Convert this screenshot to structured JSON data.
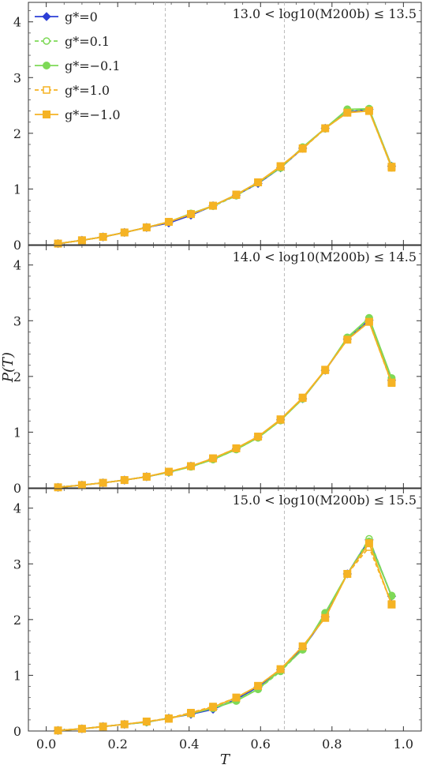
{
  "chart_data": {
    "type": "line",
    "xlabel": "T",
    "ylabel": "P(T)",
    "xlim": [
      -0.05,
      1.05
    ],
    "ylim": [
      0,
      4.35
    ],
    "x_ticks": [
      0.0,
      0.2,
      0.4,
      0.6,
      0.8,
      1.0
    ],
    "x_tick_labels": [
      "0.0",
      "0.2",
      "0.4",
      "0.6",
      "0.8",
      "1.0"
    ],
    "y_ticks": [
      0,
      1,
      2,
      3,
      4
    ],
    "y_tick_labels": [
      "0",
      "1",
      "2",
      "3",
      "4"
    ],
    "vertical_reference_lines": [
      0.3333,
      0.6667
    ],
    "grid": false,
    "legend_position": "top-left",
    "legend": [
      {
        "label": "g*=0",
        "color": "#2c3fd6",
        "style": "solid",
        "marker": "diamond"
      },
      {
        "label": "g*=0.1",
        "color": "#7ed957",
        "style": "dashed",
        "marker": "circle-open"
      },
      {
        "label": "g*=−0.1",
        "color": "#7ed957",
        "style": "solid",
        "marker": "circle"
      },
      {
        "label": "g*=1.0",
        "color": "#f5b324",
        "style": "dashed",
        "marker": "square-open"
      },
      {
        "label": "g*=−1.0",
        "color": "#f5b324",
        "style": "solid",
        "marker": "square"
      }
    ],
    "x": [
      0.033,
      0.1,
      0.159,
      0.219,
      0.281,
      0.343,
      0.405,
      0.467,
      0.532,
      0.593,
      0.656,
      0.718,
      0.781,
      0.843,
      0.904,
      0.967
    ],
    "panels": [
      {
        "label": "13.0 < log10(M200b) ≤ 13.5",
        "series": [
          {
            "name": "g*=0",
            "values": [
              0.02,
              0.08,
              0.14,
              0.22,
              0.31,
              0.39,
              0.53,
              0.7,
              0.89,
              1.1,
              1.38,
              1.73,
              2.09,
              2.38,
              2.43,
              1.41
            ]
          },
          {
            "name": "g*=0.1",
            "values": [
              0.02,
              0.08,
              0.14,
              0.22,
              0.31,
              0.41,
              0.55,
              0.69,
              0.88,
              1.11,
              1.38,
              1.73,
              2.08,
              2.41,
              2.43,
              1.38
            ]
          },
          {
            "name": "g*=−0.1",
            "values": [
              0.02,
              0.08,
              0.14,
              0.22,
              0.31,
              0.41,
              0.56,
              0.7,
              0.9,
              1.12,
              1.38,
              1.75,
              2.09,
              2.43,
              2.44,
              1.41
            ]
          },
          {
            "name": "g*=1.0",
            "values": [
              0.02,
              0.08,
              0.14,
              0.22,
              0.31,
              0.41,
              0.55,
              0.7,
              0.89,
              1.12,
              1.4,
              1.72,
              2.09,
              2.37,
              2.41,
              1.38
            ]
          },
          {
            "name": "g*=−1.0",
            "values": [
              0.02,
              0.08,
              0.14,
              0.22,
              0.31,
              0.41,
              0.55,
              0.7,
              0.9,
              1.12,
              1.41,
              1.73,
              2.09,
              2.37,
              2.4,
              1.4
            ]
          }
        ]
      },
      {
        "label": "14.0 < log10(M200b) ≤ 14.5",
        "series": [
          {
            "name": "g*=0",
            "values": [
              0.01,
              0.05,
              0.09,
              0.14,
              0.2,
              0.28,
              0.39,
              0.52,
              0.7,
              0.91,
              1.22,
              1.6,
              2.11,
              2.67,
              3.01,
              1.93
            ]
          },
          {
            "name": "g*=0.1",
            "values": [
              0.01,
              0.05,
              0.09,
              0.14,
              0.2,
              0.28,
              0.38,
              0.51,
              0.69,
              0.9,
              1.21,
              1.6,
              2.11,
              2.69,
              3.03,
              1.95
            ]
          },
          {
            "name": "g*=−0.1",
            "values": [
              0.01,
              0.05,
              0.09,
              0.14,
              0.2,
              0.28,
              0.38,
              0.51,
              0.69,
              0.9,
              1.21,
              1.6,
              2.11,
              2.7,
              3.05,
              1.97
            ]
          },
          {
            "name": "g*=1.0",
            "values": [
              0.01,
              0.05,
              0.09,
              0.14,
              0.2,
              0.29,
              0.39,
              0.53,
              0.71,
              0.92,
              1.22,
              1.61,
              2.11,
              2.66,
              2.98,
              1.88
            ]
          },
          {
            "name": "g*=−1.0",
            "values": [
              0.01,
              0.05,
              0.09,
              0.14,
              0.2,
              0.29,
              0.39,
              0.53,
              0.71,
              0.92,
              1.23,
              1.62,
              2.12,
              2.66,
              2.98,
              1.89
            ]
          }
        ]
      },
      {
        "label": "15.0 < log10(M200b) ≤ 15.5",
        "series": [
          {
            "name": "g*=0",
            "values": [
              0.01,
              0.04,
              0.08,
              0.12,
              0.16,
              0.23,
              0.3,
              0.39,
              0.57,
              0.79,
              1.1,
              1.48,
              2.05,
              2.82,
              3.43,
              2.42
            ]
          },
          {
            "name": "g*=0.1",
            "values": [
              0.01,
              0.04,
              0.08,
              0.12,
              0.16,
              0.23,
              0.31,
              0.42,
              0.56,
              0.75,
              1.07,
              1.47,
              2.1,
              2.82,
              3.45,
              2.42
            ]
          },
          {
            "name": "g*=−0.1",
            "values": [
              0.01,
              0.04,
              0.08,
              0.12,
              0.16,
              0.23,
              0.31,
              0.41,
              0.54,
              0.75,
              1.09,
              1.46,
              2.12,
              2.82,
              3.4,
              2.43
            ]
          },
          {
            "name": "g*=1.0",
            "values": [
              0.01,
              0.04,
              0.08,
              0.12,
              0.17,
              0.23,
              0.33,
              0.44,
              0.6,
              0.81,
              1.11,
              1.52,
              2.03,
              2.82,
              3.3,
              2.28
            ]
          },
          {
            "name": "g*=−1.0",
            "values": [
              0.01,
              0.04,
              0.08,
              0.12,
              0.17,
              0.22,
              0.32,
              0.43,
              0.6,
              0.81,
              1.11,
              1.52,
              2.03,
              2.82,
              3.37,
              2.27
            ]
          }
        ]
      }
    ]
  }
}
